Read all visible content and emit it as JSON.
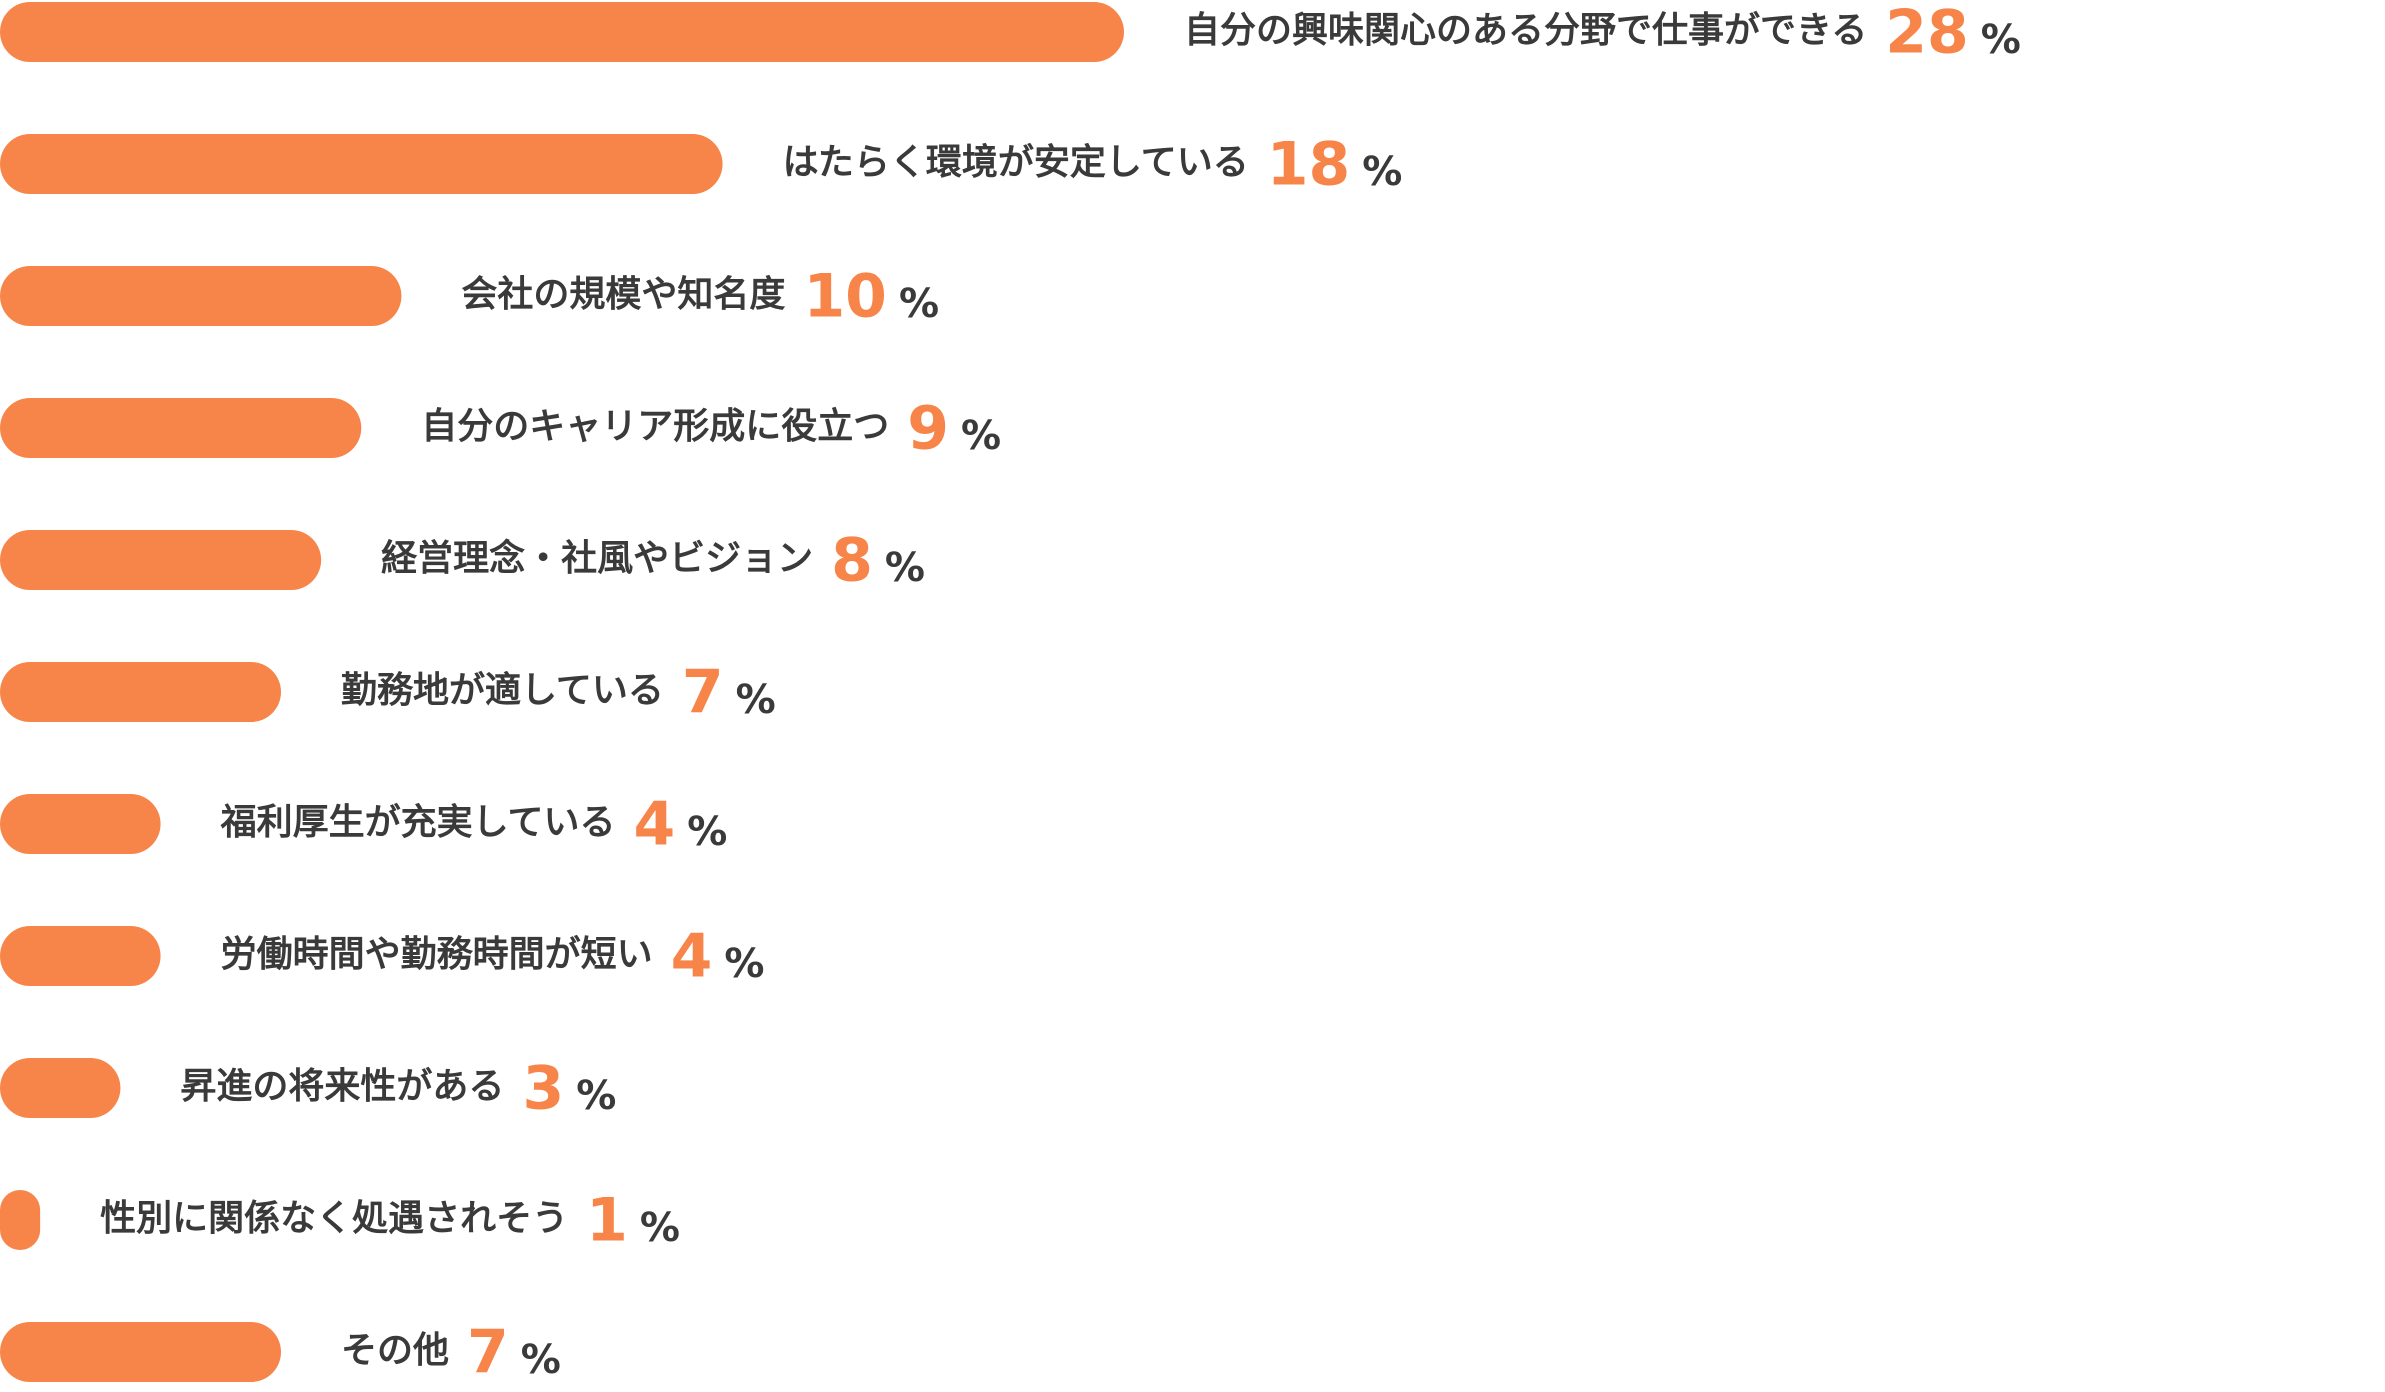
{
  "chart_data": {
    "type": "bar",
    "categories": [
      "自分の興味関心のある分野で仕事ができる",
      "はたらく環境が安定している",
      "会社の規模や知名度",
      "自分のキャリア形成に役立つ",
      "経営理念・社風やビジョン",
      "勤務地が適している",
      "福利厚生が充実している",
      "労働時間や勤務時間が短い",
      "昇進の将来性がある",
      "性別に関係なく処遇されそう",
      "その他"
    ],
    "values": [
      28,
      18,
      10,
      9,
      8,
      7,
      4,
      4,
      3,
      1,
      7
    ],
    "unit": "%",
    "color": "#f7854a"
  }
}
